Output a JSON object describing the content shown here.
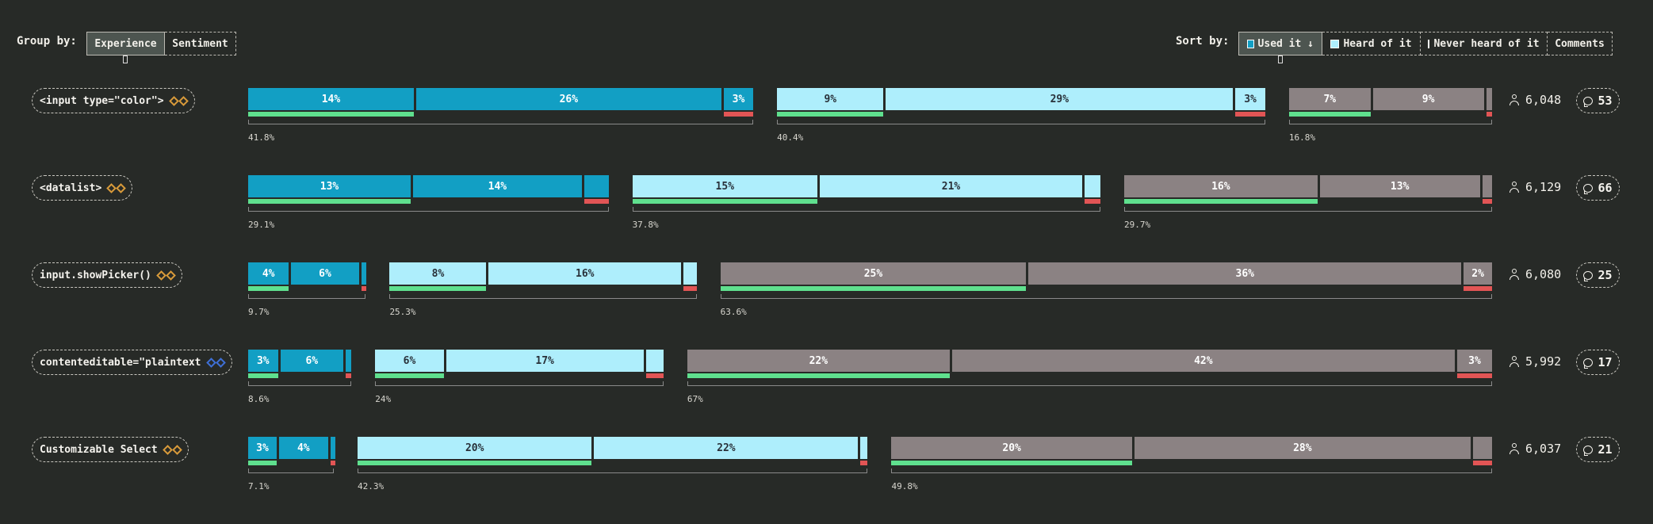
{
  "group_by": {
    "label": "Group by:",
    "options": [
      {
        "label": "Experience",
        "active": true
      },
      {
        "label": "Sentiment",
        "active": false
      }
    ]
  },
  "sort_by": {
    "label": "Sort by:",
    "options": [
      {
        "label": "Used it ↓",
        "active": true,
        "swatch": "#129fc4"
      },
      {
        "label": "Heard of it",
        "active": false,
        "swatch": "#aeeefc"
      },
      {
        "label": "Never heard of it",
        "active": false,
        "swatch": "#8b8283"
      },
      {
        "label": "Comments",
        "active": false
      }
    ]
  },
  "colors": {
    "used": "#129fc4",
    "heard": "#aeeefc",
    "never": "#8b8283",
    "positive": "#5fe08e",
    "negative": "#e25555"
  },
  "features": [
    {
      "name": "<input type=\"color\">",
      "responses": "6,048",
      "comments": "53",
      "groups": [
        {
          "type": "used",
          "total_label": "41.8%",
          "total": 41.8,
          "segments": [
            {
              "label": "14%",
              "value": 14.0
            },
            {
              "label": "26%",
              "value": 25.8
            },
            {
              "label": "3%",
              "value": 2.5
            }
          ]
        },
        {
          "type": "heard",
          "total_label": "40.4%",
          "total": 40.4,
          "segments": [
            {
              "label": "9%",
              "value": 8.9
            },
            {
              "label": "29%",
              "value": 29.0
            },
            {
              "label": "3%",
              "value": 2.5
            }
          ]
        },
        {
          "type": "never",
          "total_label": "16.8%",
          "total": 16.8,
          "segments": [
            {
              "label": "7%",
              "value": 6.9
            },
            {
              "label": "9%",
              "value": 9.4
            },
            {
              "label": "",
              "value": 0.5
            }
          ]
        }
      ]
    },
    {
      "name": "<datalist>",
      "responses": "6,129",
      "comments": "66",
      "groups": [
        {
          "type": "used",
          "total_label": "29.1%",
          "total": 29.1,
          "segments": [
            {
              "label": "13%",
              "value": 13.3
            },
            {
              "label": "14%",
              "value": 13.8
            },
            {
              "label": "",
              "value": 2.0
            }
          ]
        },
        {
          "type": "heard",
          "total_label": "37.8%",
          "total": 37.8,
          "segments": [
            {
              "label": "15%",
              "value": 15.1
            },
            {
              "label": "21%",
              "value": 21.4
            },
            {
              "label": "",
              "value": 1.3
            }
          ]
        },
        {
          "type": "never",
          "total_label": "29.7%",
          "total": 29.7,
          "segments": [
            {
              "label": "16%",
              "value": 15.8
            },
            {
              "label": "13%",
              "value": 13.1
            },
            {
              "label": "",
              "value": 0.8
            }
          ]
        }
      ]
    },
    {
      "name": "input.showPicker()",
      "responses": "6,080",
      "comments": "25",
      "groups": [
        {
          "type": "used",
          "total_label": "9.7%",
          "total": 9.7,
          "segments": [
            {
              "label": "4%",
              "value": 3.5
            },
            {
              "label": "6%",
              "value": 5.8
            },
            {
              "label": "",
              "value": 0.4
            }
          ]
        },
        {
          "type": "heard",
          "total_label": "25.3%",
          "total": 25.3,
          "segments": [
            {
              "label": "8%",
              "value": 8.1
            },
            {
              "label": "16%",
              "value": 16.1
            },
            {
              "label": "",
              "value": 1.1
            }
          ]
        },
        {
          "type": "never",
          "total_label": "63.6%",
          "total": 63.6,
          "segments": [
            {
              "label": "25%",
              "value": 24.8
            },
            {
              "label": "36%",
              "value": 35.1
            },
            {
              "label": "2%",
              "value": 2.3
            }
          ]
        }
      ]
    },
    {
      "name": "contenteditable=\"plaintext",
      "responses": "5,992",
      "comments": "17",
      "groups": [
        {
          "type": "used",
          "total_label": "8.6%",
          "total": 8.6,
          "segments": [
            {
              "label": "3%",
              "value": 2.6
            },
            {
              "label": "6%",
              "value": 5.5
            },
            {
              "label": "",
              "value": 0.5
            }
          ]
        },
        {
          "type": "heard",
          "total_label": "24%",
          "total": 24.0,
          "segments": [
            {
              "label": "6%",
              "value": 5.8
            },
            {
              "label": "17%",
              "value": 16.7
            },
            {
              "label": "",
              "value": 1.5
            }
          ]
        },
        {
          "type": "never",
          "total_label": "67%",
          "total": 67.0,
          "segments": [
            {
              "label": "22%",
              "value": 21.8
            },
            {
              "label": "42%",
              "value": 41.8
            },
            {
              "label": "3%",
              "value": 2.9
            }
          ]
        }
      ]
    },
    {
      "name": "Customizable Select",
      "responses": "6,037",
      "comments": "21",
      "groups": [
        {
          "type": "used",
          "total_label": "7.1%",
          "total": 7.1,
          "segments": [
            {
              "label": "3%",
              "value": 2.5
            },
            {
              "label": "4%",
              "value": 4.3
            },
            {
              "label": "",
              "value": 0.3
            }
          ]
        },
        {
          "type": "heard",
          "total_label": "42.3%",
          "total": 42.3,
          "segments": [
            {
              "label": "20%",
              "value": 19.6
            },
            {
              "label": "22%",
              "value": 22.1
            },
            {
              "label": "",
              "value": 0.6
            }
          ]
        },
        {
          "type": "never",
          "total_label": "49.8%",
          "total": 49.8,
          "segments": [
            {
              "label": "20%",
              "value": 20.1
            },
            {
              "label": "28%",
              "value": 28.1
            },
            {
              "label": "",
              "value": 1.6
            }
          ]
        }
      ]
    }
  ]
}
